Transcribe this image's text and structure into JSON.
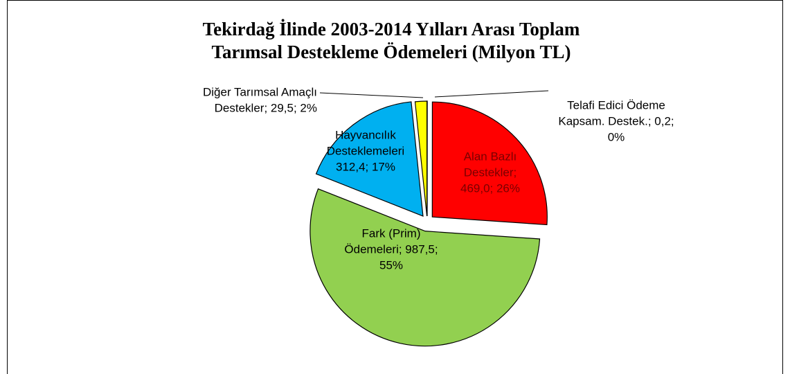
{
  "chart_data": {
    "type": "pie",
    "title": [
      "Tekirdağ İlinde 2003-2014 Yılları Arası Toplam",
      "Tarımsal Destekleme Ödemeleri (Milyon TL)"
    ],
    "values": [
      0.2,
      469.0,
      987.5,
      312.4,
      29.5
    ],
    "colors": [
      "#7030a0",
      "#ff0000",
      "#92d050",
      "#00b0f0",
      "#ffff00"
    ],
    "labels": [
      [
        "Telafi Edici Ödeme",
        "Kapsam. Destek.; 0,2;",
        "0%"
      ],
      [
        "Alan Bazlı",
        "Destekler;",
        "469,0; 26%"
      ],
      [
        "Fark (Prim)",
        "Ödemeleri; 987,5;",
        "55%"
      ],
      [
        "Hayvancılık",
        "Desteklemeleri",
        "312,4; 17%"
      ],
      [
        "Diğer Tarımsal Amaçlı",
        "Destekler; 29,5; 2%"
      ]
    ]
  }
}
